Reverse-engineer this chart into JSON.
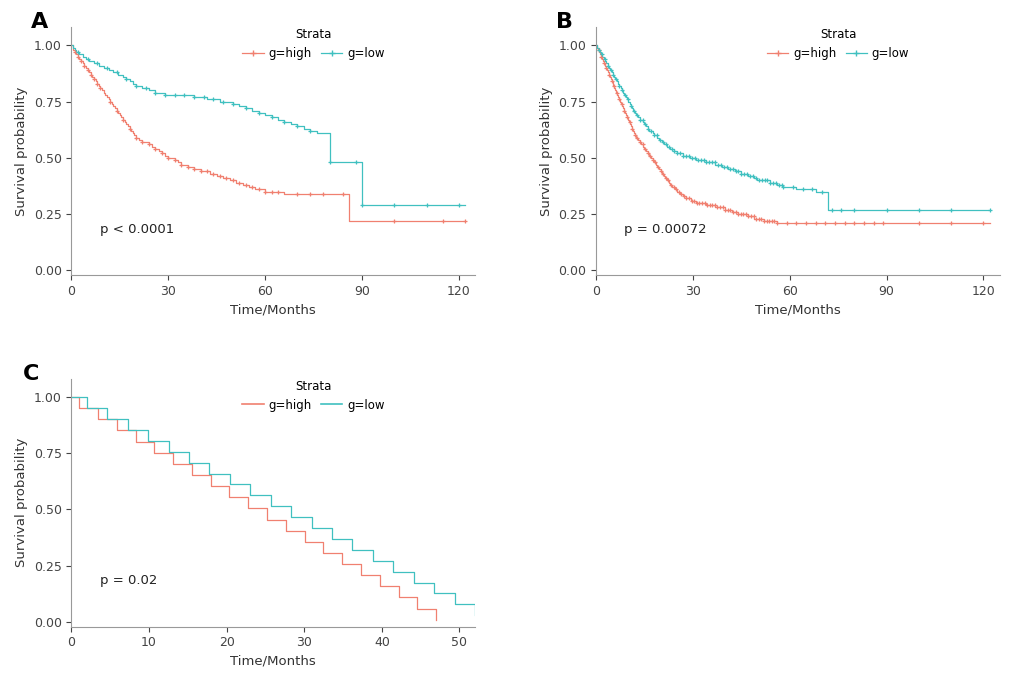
{
  "color_high": "#F08070",
  "color_low": "#40C0C0",
  "bg_color": "#FFFFFF",
  "panel_label_fontsize": 16,
  "legend_fontsize": 8.5,
  "axis_label_fontsize": 9.5,
  "tick_fontsize": 9,
  "pval_fontsize": 9.5,
  "panels": [
    {
      "label": "A",
      "xlabel": "Time/Months",
      "ylabel": "Survival probability",
      "pval": "p < 0.0001",
      "xlim": [
        0,
        125
      ],
      "ylim": [
        -0.02,
        1.08
      ],
      "xticks": [
        0,
        30,
        60,
        90,
        120
      ],
      "yticks": [
        0.0,
        0.25,
        0.5,
        0.75,
        1.0
      ]
    },
    {
      "label": "B",
      "xlabel": "Time/Months",
      "ylabel": "Survival probability",
      "pval": "p = 0.00072",
      "xlim": [
        0,
        125
      ],
      "ylim": [
        -0.02,
        1.08
      ],
      "xticks": [
        0,
        30,
        60,
        90,
        120
      ],
      "yticks": [
        0.0,
        0.25,
        0.5,
        0.75,
        1.0
      ]
    },
    {
      "label": "C",
      "xlabel": "Time/Months",
      "ylabel": "Survival probability",
      "pval": "p = 0.02",
      "xlim": [
        0,
        52
      ],
      "ylim": [
        -0.02,
        1.08
      ],
      "xticks": [
        0,
        10,
        20,
        30,
        40,
        50
      ],
      "yticks": [
        0.0,
        0.25,
        0.5,
        0.75,
        1.0
      ]
    }
  ]
}
